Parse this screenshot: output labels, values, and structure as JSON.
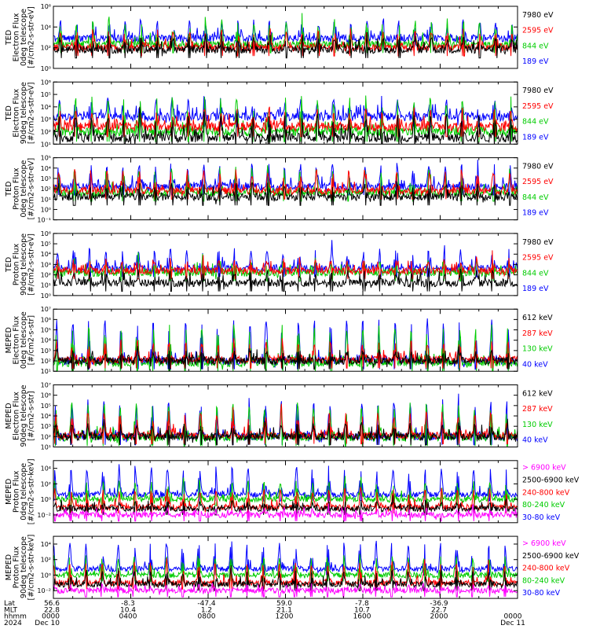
{
  "figure": {
    "footer": {
      "rows": [
        {
          "label": "Lat",
          "values": [
            "56.6",
            "-8.3",
            "-47.4",
            "59.0",
            "-7.8",
            "-36.9",
            ""
          ]
        },
        {
          "label": "MLT",
          "values": [
            "22.8",
            "10.4",
            "1.2",
            "21.1",
            "10.7",
            "22.7",
            ""
          ]
        },
        {
          "label": "hhmm",
          "values": [
            "0000",
            "0400",
            "0800",
            "1200",
            "1600",
            "2000",
            "0000"
          ]
        },
        {
          "label": "2024",
          "values": [
            "Dec 10",
            "",
            "",
            "",
            "",
            "",
            "Dec 11"
          ]
        }
      ]
    }
  },
  "chart_data": [
    {
      "type": "line",
      "title": "",
      "ylabel_lines": [
        "TED",
        "Electron Flux",
        "0deg telescope",
        "[#/cm2-s-str-eV]"
      ],
      "ylog": true,
      "ylim_exp": [
        0,
        6
      ],
      "tick_exps": [
        0,
        2,
        4,
        6
      ],
      "x_range_hours": [
        0,
        24
      ],
      "baseline_exp": 1.5,
      "peak_exp": 4.5,
      "series": [
        {
          "name": "7980 eV",
          "color": "#000000",
          "level_exp": 1.8,
          "peak_exp": 3.0
        },
        {
          "name": "2595 eV",
          "color": "#ff0000",
          "level_exp": 2.0,
          "peak_exp": 3.6
        },
        {
          "name": "844 eV",
          "color": "#00cc00",
          "level_exp": 2.3,
          "peak_exp": 4.5
        },
        {
          "name": "189 eV",
          "color": "#0000ff",
          "level_exp": 2.9,
          "peak_exp": 4.4
        }
      ]
    },
    {
      "type": "line",
      "title": "",
      "ylabel_lines": [
        "TED",
        "Electron Flux",
        "90deg telescope",
        "[#/cm2-s-str-eV]"
      ],
      "ylog": true,
      "ylim_exp": [
        1,
        6
      ],
      "tick_exps": [
        1,
        2,
        3,
        4,
        5,
        6
      ],
      "x_range_hours": [
        0,
        24
      ],
      "series": [
        {
          "name": "7980 eV",
          "color": "#000000",
          "level_exp": 1.5,
          "peak_exp": 3.2
        },
        {
          "name": "2595 eV",
          "color": "#ff0000",
          "level_exp": 2.4,
          "peak_exp": 3.6
        },
        {
          "name": "844 eV",
          "color": "#00cc00",
          "level_exp": 2.0,
          "peak_exp": 4.6
        },
        {
          "name": "189 eV",
          "color": "#0000ff",
          "level_exp": 3.2,
          "peak_exp": 4.5
        }
      ]
    },
    {
      "type": "line",
      "title": "",
      "ylabel_lines": [
        "TED",
        "Proton Flux",
        "0deg telescope",
        "[#/cm2-s-str-eV]"
      ],
      "ylog": true,
      "ylim_exp": [
        -1,
        5
      ],
      "tick_exps": [
        -1,
        0,
        1,
        2,
        3,
        4,
        5
      ],
      "x_range_hours": [
        0,
        24
      ],
      "series": [
        {
          "name": "7980 eV",
          "color": "#000000",
          "level_exp": 1.2,
          "peak_exp": 2.4
        },
        {
          "name": "2595 eV",
          "color": "#ff0000",
          "level_exp": 1.8,
          "peak_exp": 3.6
        },
        {
          "name": "844 eV",
          "color": "#00cc00",
          "level_exp": 1.6,
          "peak_exp": 3.8
        },
        {
          "name": "189 eV",
          "color": "#0000ff",
          "level_exp": 2.2,
          "peak_exp": 4.2
        }
      ]
    },
    {
      "type": "line",
      "title": "",
      "ylabel_lines": [
        "TED",
        "Proton Flux",
        "90deg telescope",
        "[#/cm2-s-str-eV]"
      ],
      "ylog": true,
      "ylim_exp": [
        0,
        6
      ],
      "tick_exps": [
        0,
        1,
        2,
        3,
        4,
        5,
        6
      ],
      "x_range_hours": [
        0,
        24
      ],
      "series": [
        {
          "name": "7980 eV",
          "color": "#000000",
          "level_exp": 1.2,
          "peak_exp": 2.2
        },
        {
          "name": "2595 eV",
          "color": "#ff0000",
          "level_exp": 2.4,
          "peak_exp": 3.4
        },
        {
          "name": "844 eV",
          "color": "#00cc00",
          "level_exp": 2.2,
          "peak_exp": 3.2
        },
        {
          "name": "189 eV",
          "color": "#0000ff",
          "level_exp": 2.6,
          "peak_exp": 4.4
        }
      ]
    },
    {
      "type": "line",
      "title": "",
      "ylabel_lines": [
        "MEPED",
        "Electron Flux",
        "0deg telescope",
        "[#/cm2-s-str]"
      ],
      "ylog": true,
      "ylim_exp": [
        1,
        7
      ],
      "tick_exps": [
        1,
        2,
        3,
        4,
        5,
        6,
        7
      ],
      "x_range_hours": [
        0,
        24
      ],
      "series": [
        {
          "name": "612 keV",
          "color": "#000000",
          "level_exp": 2.0,
          "peak_exp": 2.8
        },
        {
          "name": "287 keV",
          "color": "#ff0000",
          "level_exp": 2.1,
          "peak_exp": 3.8
        },
        {
          "name": "130 keV",
          "color": "#00cc00",
          "level_exp": 1.8,
          "peak_exp": 5.2
        },
        {
          "name": "40 keV",
          "color": "#0000ff",
          "level_exp": 2.0,
          "peak_exp": 5.8
        }
      ]
    },
    {
      "type": "line",
      "title": "",
      "ylabel_lines": [
        "MEPED",
        "Electron Flux",
        "90deg telescope",
        "[#/cm2-s-str]"
      ],
      "ylog": true,
      "ylim_exp": [
        1,
        7
      ],
      "tick_exps": [
        1,
        2,
        3,
        4,
        5,
        6,
        7
      ],
      "x_range_hours": [
        0,
        24
      ],
      "series": [
        {
          "name": "612 keV",
          "color": "#000000",
          "level_exp": 2.0,
          "peak_exp": 3.2
        },
        {
          "name": "287 keV",
          "color": "#ff0000",
          "level_exp": 2.1,
          "peak_exp": 4.2
        },
        {
          "name": "130 keV",
          "color": "#00cc00",
          "level_exp": 1.9,
          "peak_exp": 5.0
        },
        {
          "name": "40 keV",
          "color": "#0000ff",
          "level_exp": 2.0,
          "peak_exp": 5.4
        }
      ]
    },
    {
      "type": "line",
      "title": "",
      "ylabel_lines": [
        "MEPED",
        "Proton Flux",
        "0deg telescope",
        "[#/cm2-s-str-keV]"
      ],
      "ylog": true,
      "ylim_exp": [
        -3,
        5
      ],
      "tick_exps": [
        -2,
        0,
        2,
        4
      ],
      "x_range_hours": [
        0,
        24
      ],
      "series": [
        {
          "name": "> 6900 keV",
          "color": "#ff00ff",
          "level_exp": -2.0,
          "peak_exp": -1.4
        },
        {
          "name": "2500-6900 keV",
          "color": "#000000",
          "level_exp": -1.2,
          "peak_exp": -0.4
        },
        {
          "name": "240-800 keV",
          "color": "#ff0000",
          "level_exp": -1.0,
          "peak_exp": 1.2
        },
        {
          "name": "80-240 keV",
          "color": "#00cc00",
          "level_exp": 0.0,
          "peak_exp": 2.2
        },
        {
          "name": "30-80 keV",
          "color": "#0000ff",
          "level_exp": 0.6,
          "peak_exp": 4.0
        }
      ]
    },
    {
      "type": "line",
      "title": "",
      "ylabel_lines": [
        "MEPED",
        "Proton Flux",
        "90deg telescope",
        "[#/cm2-s-str-keV]"
      ],
      "ylog": true,
      "ylim_exp": [
        -3,
        5
      ],
      "tick_exps": [
        -2,
        0,
        2,
        4
      ],
      "x_range_hours": [
        0,
        24
      ],
      "series": [
        {
          "name": "> 6900 keV",
          "color": "#ff00ff",
          "level_exp": -2.0,
          "peak_exp": -1.4
        },
        {
          "name": "2500-6900 keV",
          "color": "#000000",
          "level_exp": -1.2,
          "peak_exp": 0.4
        },
        {
          "name": "240-800 keV",
          "color": "#ff0000",
          "level_exp": -1.0,
          "peak_exp": 1.4
        },
        {
          "name": "80-240 keV",
          "color": "#00cc00",
          "level_exp": 0.0,
          "peak_exp": 2.4
        },
        {
          "name": "30-80 keV",
          "color": "#0000ff",
          "level_exp": 0.8,
          "peak_exp": 4.0
        }
      ]
    }
  ]
}
